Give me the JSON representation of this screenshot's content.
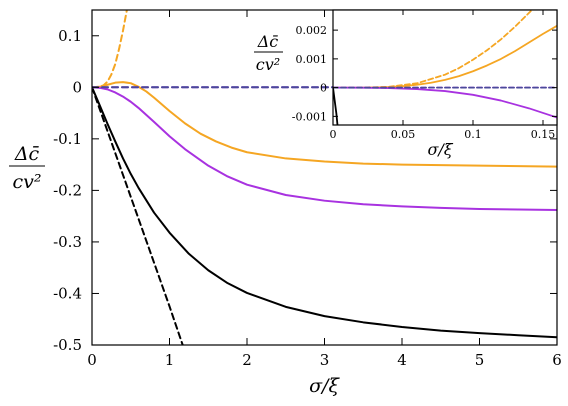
{
  "chart_data": [
    {
      "type": "line",
      "xlabel": "σ/ξ",
      "ylabel": {
        "numerator": "Δc̄",
        "denominator": "cv²"
      },
      "xlim": [
        0,
        6
      ],
      "ylim": [
        -0.5,
        0.15
      ],
      "x_ticks": [
        0,
        1,
        2,
        3,
        4,
        5,
        6
      ],
      "x_tick_labels": [
        "0",
        "1",
        "2",
        "3",
        "4",
        "5",
        "6"
      ],
      "y_ticks": [
        0.1,
        0,
        -0.1,
        -0.2,
        -0.3,
        -0.4,
        -0.5
      ],
      "y_tick_labels": [
        "0.1",
        "0",
        "-0.1",
        "-0.2",
        "-0.3",
        "-0.4",
        "-0.5"
      ],
      "grid": false,
      "series": [
        {
          "color": "#000000",
          "dash": false,
          "x": [
            0,
            0.1,
            0.2,
            0.3,
            0.4,
            0.5,
            0.6,
            0.8,
            1.0,
            1.25,
            1.5,
            1.75,
            2.0,
            2.5,
            3.0,
            3.5,
            4.0,
            4.5,
            5.0,
            5.5,
            6.0
          ],
          "y": [
            0,
            -0.035,
            -0.071,
            -0.105,
            -0.138,
            -0.168,
            -0.195,
            -0.243,
            -0.282,
            -0.323,
            -0.355,
            -0.38,
            -0.399,
            -0.426,
            -0.444,
            -0.456,
            -0.465,
            -0.472,
            -0.477,
            -0.481,
            -0.485
          ]
        },
        {
          "color": "#000000",
          "dash": true,
          "x": [
            0,
            0.2,
            0.4,
            0.6,
            0.8,
            1.0,
            1.17
          ],
          "y": [
            0,
            -0.085,
            -0.17,
            -0.255,
            -0.34,
            -0.425,
            -0.5
          ]
        },
        {
          "color": "#f5a623",
          "dash": false,
          "x": [
            0,
            0.1,
            0.2,
            0.3,
            0.4,
            0.5,
            0.6,
            0.7,
            0.8,
            1.0,
            1.2,
            1.4,
            1.6,
            1.8,
            2.0,
            2.5,
            3.0,
            3.5,
            4.0,
            4.5,
            5.0,
            5.5,
            6.0
          ],
          "y": [
            0,
            0.001,
            0.005,
            0.009,
            0.01,
            0.008,
            0.001,
            -0.008,
            -0.02,
            -0.046,
            -0.07,
            -0.09,
            -0.105,
            -0.117,
            -0.126,
            -0.138,
            -0.144,
            -0.148,
            -0.15,
            -0.151,
            -0.152,
            -0.153,
            -0.154
          ]
        },
        {
          "color": "#f5a623",
          "dash": true,
          "x": [
            0,
            0.1,
            0.15,
            0.2,
            0.25,
            0.3,
            0.35,
            0.4,
            0.45
          ],
          "y": [
            0,
            0.001,
            0.004,
            0.011,
            0.025,
            0.045,
            0.075,
            0.11,
            0.15
          ]
        },
        {
          "color": "#a832e0",
          "dash": false,
          "x": [
            0,
            0.1,
            0.2,
            0.3,
            0.4,
            0.5,
            0.6,
            0.8,
            1.0,
            1.2,
            1.5,
            1.75,
            2.0,
            2.5,
            3.0,
            3.5,
            4.0,
            4.5,
            5.0,
            5.5,
            6.0
          ],
          "y": [
            0,
            -0.001,
            -0.004,
            -0.01,
            -0.018,
            -0.028,
            -0.04,
            -0.067,
            -0.095,
            -0.12,
            -0.152,
            -0.173,
            -0.189,
            -0.209,
            -0.22,
            -0.227,
            -0.231,
            -0.234,
            -0.236,
            -0.237,
            -0.238
          ]
        },
        {
          "color": "#a832e0",
          "dash": true,
          "x": [
            0,
            6
          ],
          "y": [
            0,
            0
          ]
        },
        {
          "color": "#4a4a9a",
          "dash": true,
          "x": [
            0,
            6
          ],
          "y": [
            0,
            0
          ]
        }
      ]
    },
    {
      "type": "line",
      "xlabel": "σ/ξ",
      "ylabel": {
        "numerator": "Δc̄",
        "denominator": "cv²"
      },
      "xlim": [
        0,
        0.16
      ],
      "ylim": [
        -0.0013,
        0.0027
      ],
      "x_ticks": [
        0,
        0.05,
        0.1,
        0.15
      ],
      "x_tick_labels": [
        "0",
        "0.05",
        "0.1",
        "0.15"
      ],
      "y_ticks": [
        0.002,
        0.001,
        0,
        -0.001
      ],
      "y_tick_labels": [
        "0.002",
        "0.001",
        "0",
        "-0.001"
      ],
      "grid": false,
      "series": [
        {
          "color": "#000000",
          "dash": false,
          "x": [
            0,
            0.0008,
            0.0016,
            0.0024,
            0.0032
          ],
          "y": [
            0,
            -0.0003,
            -0.0006,
            -0.0009,
            -0.0013
          ]
        },
        {
          "color": "#f5a623",
          "dash": false,
          "x": [
            0,
            0.02,
            0.03,
            0.04,
            0.05,
            0.06,
            0.07,
            0.08,
            0.09,
            0.1,
            0.11,
            0.12,
            0.13,
            0.14,
            0.15,
            0.16
          ],
          "y": [
            0,
            1e-06,
            6e-06,
            2e-05,
            5e-05,
            0.0001,
            0.00017,
            0.00027,
            0.0004,
            0.00057,
            0.00077,
            0.001,
            0.00127,
            0.00157,
            0.00187,
            0.00215
          ]
        },
        {
          "color": "#f5a623",
          "dash": true,
          "x": [
            0,
            0.02,
            0.04,
            0.06,
            0.08,
            0.09,
            0.1,
            0.11,
            0.12,
            0.13,
            0.14,
            0.15
          ],
          "y": [
            0,
            1e-06,
            3e-05,
            0.00015,
            0.00045,
            0.00068,
            0.00097,
            0.0013,
            0.00168,
            0.00212,
            0.0026,
            0.0031
          ]
        },
        {
          "color": "#a832e0",
          "dash": false,
          "x": [
            0,
            0.02,
            0.04,
            0.06,
            0.08,
            0.1,
            0.12,
            0.14,
            0.16
          ],
          "y": [
            0,
            -2e-06,
            -1.5e-05,
            -5e-05,
            -0.00012,
            -0.00025,
            -0.00045,
            -0.00072,
            -0.00104
          ]
        },
        {
          "color": "#a832e0",
          "dash": true,
          "x": [
            0,
            0.16
          ],
          "y": [
            0,
            0
          ]
        },
        {
          "color": "#4a4a9a",
          "dash": true,
          "x": [
            0,
            0.16
          ],
          "y": [
            0,
            0
          ]
        }
      ]
    }
  ]
}
